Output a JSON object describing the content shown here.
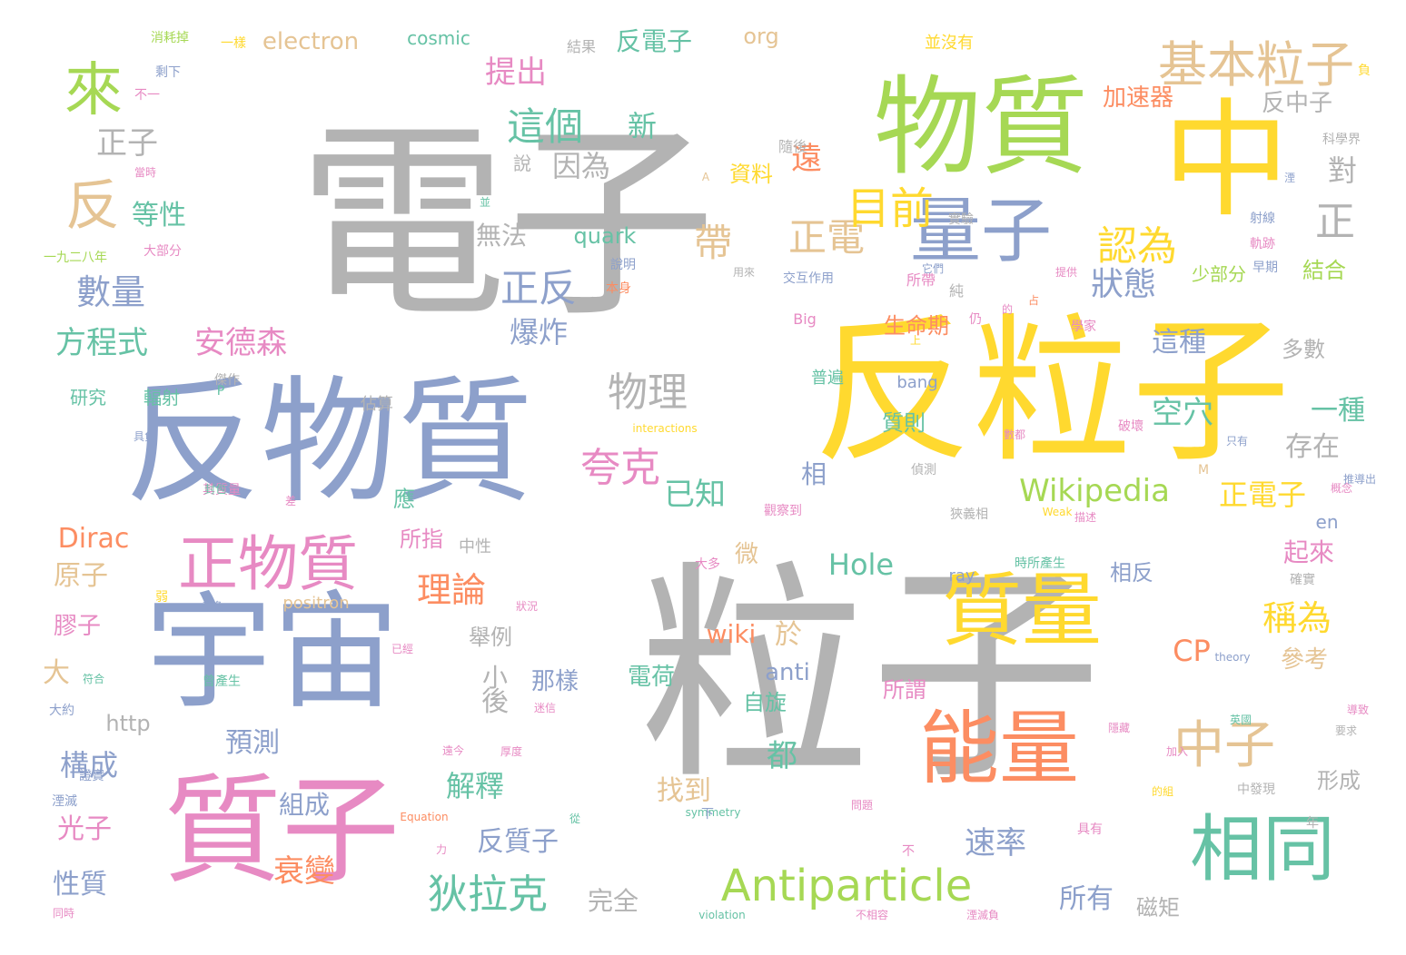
{
  "palette": {
    "gray": "#b3b3b3",
    "yellow": "#ffd92f",
    "green": "#a6d854",
    "blue": "#8da0cb",
    "pink": "#e78ac3",
    "orange": "#fc8d62",
    "teal": "#66c2a5",
    "tan": "#e5c494"
  },
  "words": [
    {
      "text": "電子",
      "color": "gray"
    },
    {
      "text": "粒子",
      "color": "gray"
    },
    {
      "text": "反粒子",
      "color": "yellow"
    },
    {
      "text": "反物質",
      "color": "blue"
    },
    {
      "text": "物質",
      "color": "green"
    },
    {
      "text": "中",
      "color": "yellow"
    },
    {
      "text": "宇宙",
      "color": "blue"
    },
    {
      "text": "質子",
      "color": "pink"
    },
    {
      "text": "能量",
      "color": "orange"
    },
    {
      "text": "質量",
      "color": "yellow"
    },
    {
      "text": "相同",
      "color": "teal"
    },
    {
      "text": "量子",
      "color": "blue"
    },
    {
      "text": "來",
      "color": "green"
    },
    {
      "text": "反",
      "color": "tan"
    },
    {
      "text": "基本粒子",
      "color": "tan"
    },
    {
      "text": "正物質",
      "color": "pink"
    },
    {
      "text": "Antiparticle",
      "color": "green"
    },
    {
      "text": "中子",
      "color": "tan"
    },
    {
      "text": "狄拉克",
      "color": "teal"
    },
    {
      "text": "物理",
      "color": "gray"
    },
    {
      "text": "夸克",
      "color": "pink"
    },
    {
      "text": "這個",
      "color": "teal"
    },
    {
      "text": "數量",
      "color": "blue"
    },
    {
      "text": "認為",
      "color": "yellow"
    },
    {
      "text": "正反",
      "color": "blue"
    },
    {
      "text": "正電",
      "color": "tan"
    },
    {
      "text": "帶",
      "color": "tan"
    },
    {
      "text": "正",
      "color": "gray"
    },
    {
      "text": "目前",
      "color": "yellow"
    },
    {
      "text": "Wikipedia",
      "color": "green"
    },
    {
      "text": "空穴",
      "color": "teal"
    },
    {
      "text": "理論",
      "color": "orange"
    },
    {
      "text": "稱為",
      "color": "yellow"
    },
    {
      "text": "正電子",
      "color": "yellow"
    },
    {
      "text": "安德森",
      "color": "pink"
    },
    {
      "text": "方程式",
      "color": "teal"
    },
    {
      "text": "狀態",
      "color": "blue"
    },
    {
      "text": "爆炸",
      "color": "blue"
    },
    {
      "text": "提出",
      "color": "pink"
    },
    {
      "text": "反電子",
      "color": "teal"
    },
    {
      "text": "electron",
      "color": "tan"
    },
    {
      "text": "cosmic",
      "color": "teal"
    },
    {
      "text": "org",
      "color": "tan"
    },
    {
      "text": "正子",
      "color": "gray"
    },
    {
      "text": "新",
      "color": "teal"
    },
    {
      "text": "說",
      "color": "gray"
    },
    {
      "text": "因為",
      "color": "gray"
    },
    {
      "text": "遠",
      "color": "orange"
    },
    {
      "text": "資料",
      "color": "yellow"
    },
    {
      "text": "對",
      "color": "gray"
    },
    {
      "text": "加速器",
      "color": "orange"
    },
    {
      "text": "反中子",
      "color": "gray"
    },
    {
      "text": "等性",
      "color": "teal"
    },
    {
      "text": "無法",
      "color": "gray"
    },
    {
      "text": "quark",
      "color": "teal"
    },
    {
      "text": "生命期",
      "color": "orange"
    },
    {
      "text": "這種",
      "color": "blue"
    },
    {
      "text": "一種",
      "color": "teal"
    },
    {
      "text": "存在",
      "color": "gray"
    },
    {
      "text": "多數",
      "color": "gray"
    },
    {
      "text": "結合",
      "color": "green"
    },
    {
      "text": "少部分",
      "color": "green"
    },
    {
      "text": "已知",
      "color": "teal"
    },
    {
      "text": "Hole",
      "color": "teal"
    },
    {
      "text": "質則",
      "color": "teal"
    },
    {
      "text": "Dirac",
      "color": "orange"
    },
    {
      "text": "原子",
      "color": "tan"
    },
    {
      "text": "膠子",
      "color": "pink"
    },
    {
      "text": "大",
      "color": "tan"
    },
    {
      "text": "構成",
      "color": "blue"
    },
    {
      "text": "光子",
      "color": "pink"
    },
    {
      "text": "性質",
      "color": "blue"
    },
    {
      "text": "預測",
      "color": "blue"
    },
    {
      "text": "後",
      "color": "gray"
    },
    {
      "text": "小",
      "color": "gray"
    },
    {
      "text": "那樣",
      "color": "blue"
    },
    {
      "text": "舉例",
      "color": "gray"
    },
    {
      "text": "http",
      "color": "gray"
    },
    {
      "text": "解釋",
      "color": "teal"
    },
    {
      "text": "衰變",
      "color": "orange"
    },
    {
      "text": "組成",
      "color": "blue"
    },
    {
      "text": "反質子",
      "color": "blue"
    },
    {
      "text": "完全",
      "color": "gray"
    },
    {
      "text": "所有",
      "color": "blue"
    },
    {
      "text": "磁矩",
      "color": "gray"
    },
    {
      "text": "速率",
      "color": "blue"
    },
    {
      "text": "找到",
      "color": "tan"
    },
    {
      "text": "都",
      "color": "teal"
    },
    {
      "text": "自旋",
      "color": "teal"
    },
    {
      "text": "anti",
      "color": "blue"
    },
    {
      "text": "電荷",
      "color": "teal"
    },
    {
      "text": "wiki",
      "color": "orange"
    },
    {
      "text": "於",
      "color": "tan"
    },
    {
      "text": "CP",
      "color": "orange"
    },
    {
      "text": "參考",
      "color": "tan"
    },
    {
      "text": "所謂",
      "color": "pink"
    },
    {
      "text": "相反",
      "color": "blue"
    },
    {
      "text": "起來",
      "color": "pink"
    },
    {
      "text": "形成",
      "color": "gray"
    },
    {
      "text": "微",
      "color": "tan"
    },
    {
      "text": "所指",
      "color": "pink"
    },
    {
      "text": "應",
      "color": "teal"
    },
    {
      "text": "相",
      "color": "blue"
    },
    {
      "text": "en",
      "color": "blue"
    },
    {
      "text": "研究",
      "color": "teal"
    },
    {
      "text": "輻射",
      "color": "teal"
    },
    {
      "text": "佔算",
      "color": "gray"
    },
    {
      "text": "bang",
      "color": "blue"
    },
    {
      "text": "普遍",
      "color": "teal"
    },
    {
      "text": "ray",
      "color": "blue"
    },
    {
      "text": "positron",
      "color": "tan"
    },
    {
      "text": "中性",
      "color": "gray"
    },
    {
      "text": "大多",
      "color": "pink"
    },
    {
      "text": "時所產生",
      "color": "teal"
    },
    {
      "text": "消耗掉",
      "color": "green"
    },
    {
      "text": "一樣",
      "color": "yellow"
    },
    {
      "text": "結果",
      "color": "gray"
    },
    {
      "text": "並沒有",
      "color": "yellow"
    },
    {
      "text": "科學界",
      "color": "gray"
    },
    {
      "text": "隨後",
      "color": "gray"
    },
    {
      "text": "實驗",
      "color": "gray"
    },
    {
      "text": "純",
      "color": "gray"
    },
    {
      "text": "所帶",
      "color": "pink"
    },
    {
      "text": "射線",
      "color": "blue"
    },
    {
      "text": "軌跡",
      "color": "pink"
    },
    {
      "text": "早期",
      "color": "blue"
    },
    {
      "text": "一九二八年",
      "color": "green"
    },
    {
      "text": "大部分",
      "color": "pink"
    },
    {
      "text": "說明",
      "color": "blue"
    },
    {
      "text": "本身",
      "color": "orange"
    },
    {
      "text": "Big",
      "color": "pink"
    },
    {
      "text": "交互作用",
      "color": "blue"
    },
    {
      "text": "interactions",
      "color": "yellow"
    },
    {
      "text": "Weak",
      "color": "yellow"
    },
    {
      "text": "symmetry",
      "color": "teal"
    },
    {
      "text": "violation",
      "color": "teal"
    },
    {
      "text": "Equation",
      "color": "orange"
    },
    {
      "text": "theory",
      "color": "blue"
    },
    {
      "text": "其質量",
      "color": "pink"
    },
    {
      "text": "曾產生",
      "color": "teal"
    },
    {
      "text": "證實",
      "color": "blue"
    },
    {
      "text": "湮滅",
      "color": "blue"
    },
    {
      "text": "大約",
      "color": "blue"
    },
    {
      "text": "中發現",
      "color": "gray"
    },
    {
      "text": "確實",
      "color": "gray"
    },
    {
      "text": "導致",
      "color": "pink"
    },
    {
      "text": "狀況",
      "color": "pink"
    },
    {
      "text": "觀察到",
      "color": "pink"
    },
    {
      "text": "偵測",
      "color": "gray"
    },
    {
      "text": "不相容",
      "color": "pink"
    },
    {
      "text": "湮滅負",
      "color": "pink"
    },
    {
      "text": "剩下",
      "color": "blue"
    },
    {
      "text": "不一",
      "color": "pink"
    },
    {
      "text": "傑作",
      "color": "gray"
    },
    {
      "text": "具負",
      "color": "blue"
    },
    {
      "text": "年",
      "color": "gray"
    },
    {
      "text": "上",
      "color": "yellow"
    },
    {
      "text": "仍",
      "color": "pink"
    },
    {
      "text": "占",
      "color": "orange"
    },
    {
      "text": "不",
      "color": "pink"
    },
    {
      "text": "從",
      "color": "teal"
    },
    {
      "text": "弱",
      "color": "yellow"
    },
    {
      "text": "力",
      "color": "pink"
    },
    {
      "text": "同時",
      "color": "pink"
    },
    {
      "text": "M",
      "color": "tan"
    },
    {
      "text": "P",
      "color": "teal"
    },
    {
      "text": "A",
      "color": "tan"
    },
    {
      "text": "具有",
      "color": "pink"
    },
    {
      "text": "英國",
      "color": "teal"
    },
    {
      "text": "下",
      "color": "blue"
    },
    {
      "text": "的組",
      "color": "yellow"
    },
    {
      "text": "要求",
      "color": "gray"
    },
    {
      "text": "推導出",
      "color": "blue"
    },
    {
      "text": "概念",
      "color": "pink"
    },
    {
      "text": "負",
      "color": "yellow"
    },
    {
      "text": "的",
      "color": "pink"
    },
    {
      "text": "數都",
      "color": "pink"
    },
    {
      "text": "破壞",
      "color": "pink"
    },
    {
      "text": "學家",
      "color": "pink"
    },
    {
      "text": "它們",
      "color": "blue"
    },
    {
      "text": "提供",
      "color": "pink"
    },
    {
      "text": "用來",
      "color": "gray"
    },
    {
      "text": "狹義相",
      "color": "gray"
    },
    {
      "text": "描述",
      "color": "pink"
    },
    {
      "text": "問題",
      "color": "pink"
    },
    {
      "text": "帶負",
      "color": "blue"
    },
    {
      "text": "只有",
      "color": "blue"
    },
    {
      "text": "已經",
      "color": "pink"
    },
    {
      "text": "符合",
      "color": "teal"
    },
    {
      "text": "迷信",
      "color": "pink"
    },
    {
      "text": "厚度",
      "color": "pink"
    },
    {
      "text": "隱藏",
      "color": "pink"
    },
    {
      "text": "封包",
      "color": "teal"
    },
    {
      "text": "遠今",
      "color": "pink"
    },
    {
      "text": "當時",
      "color": "pink"
    },
    {
      "text": "並",
      "color": "teal"
    },
    {
      "text": "差",
      "color": "pink"
    },
    {
      "text": "湮",
      "color": "blue"
    },
    {
      "text": "加入",
      "color": "pink"
    }
  ]
}
